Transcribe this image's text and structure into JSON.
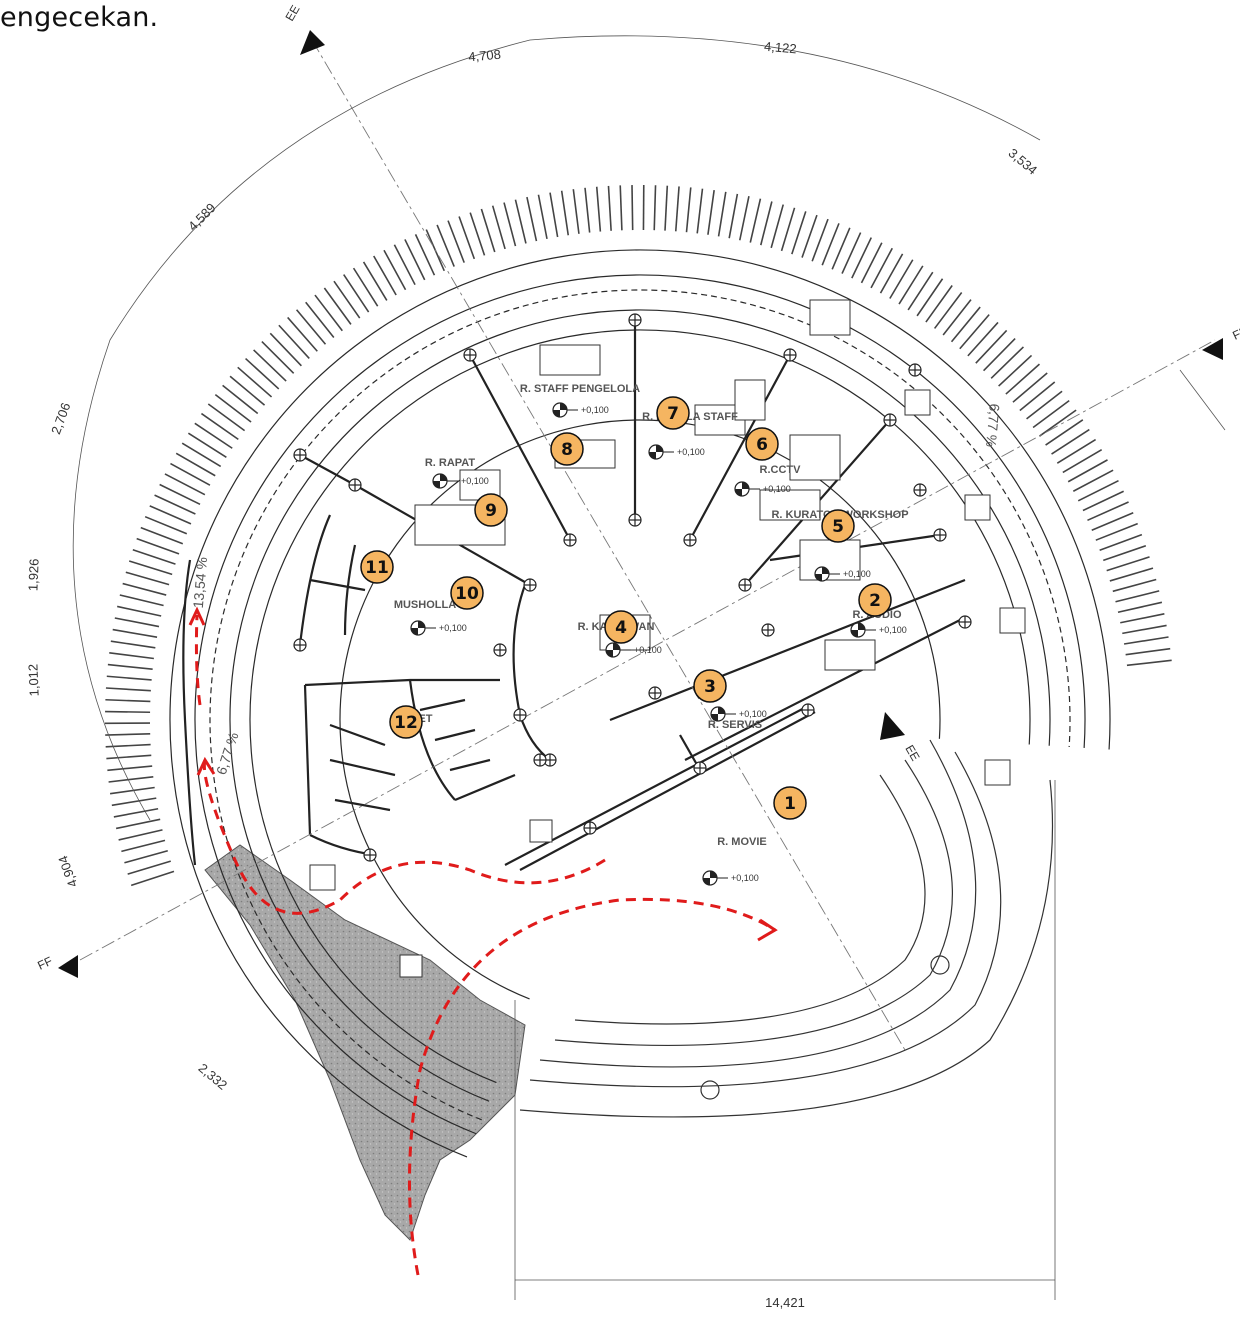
{
  "heading": "engecekan.",
  "dimensions": [
    "4,708",
    "4,122",
    "3,534",
    "4,589",
    "2,706",
    "1,926",
    "1,012",
    "4,904",
    "2,332",
    "14,421"
  ],
  "slopes": [
    "13,54 %",
    "6,77 %",
    "6,77 %"
  ],
  "section_marks": [
    "EE",
    "EE",
    "FF",
    "FF"
  ],
  "level_text": "+0,100",
  "rooms": [
    {
      "id": "movie",
      "label": "R. MOVIE",
      "number": "1"
    },
    {
      "id": "audio",
      "label": "R. AUDIO",
      "number": "2"
    },
    {
      "id": "servis",
      "label": "R. SERVIS",
      "number": "3"
    },
    {
      "id": "tunggu",
      "label": "R. KARYAWAN",
      "number": "4"
    },
    {
      "id": "workshop",
      "label": "R. KURATOR WORKSHOP",
      "number": "5"
    },
    {
      "id": "cctv",
      "label": "R.CCTV",
      "number": "6"
    },
    {
      "id": "kepala",
      "label": "R. KEPALA STAFF",
      "number": "7"
    },
    {
      "id": "staff",
      "label": "R. STAFF PENGELOLA",
      "number": "8"
    },
    {
      "id": "rapat",
      "label": "R. RAPAT",
      "number": "9"
    },
    {
      "id": "musholla",
      "label": "MUSHOLLA",
      "number": "10"
    },
    {
      "id": "wudhu",
      "label": "",
      "number": "11"
    },
    {
      "id": "toilet",
      "label": "TOILET",
      "number": "12"
    }
  ],
  "colors": {
    "badge_fill": "#F5B561",
    "path_arrow": "#E01B1B",
    "paving": "#9e9e9e",
    "line": "#2a2a2a"
  }
}
